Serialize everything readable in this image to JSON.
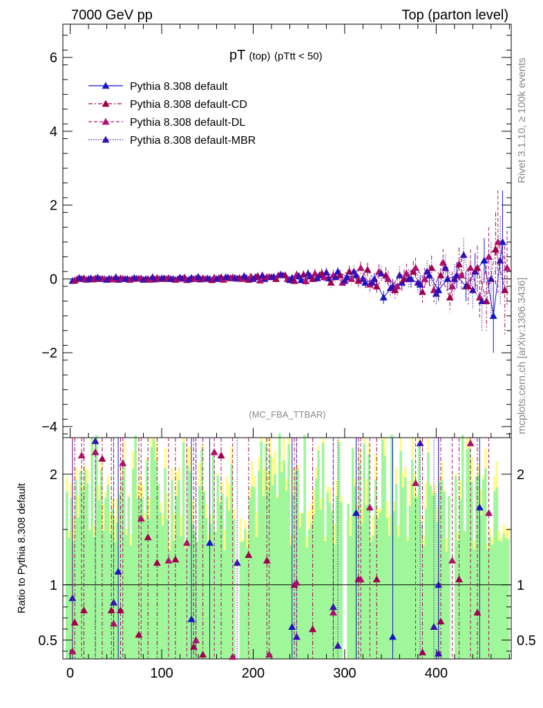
{
  "header": {
    "left": "7000 GeV pp",
    "right": "Top (parton level)"
  },
  "plot_title": {
    "main": "pT",
    "sub": "(top)",
    "cut": "(pTtt < 50)"
  },
  "watermark": "(MC_FBA_TTBAR)",
  "side_text": {
    "rivet": "Rivet 3.1.10, ≥ 100k events",
    "mcplots": "mcplots.cern.ch [arXiv:1306.3436]"
  },
  "colors": {
    "default": "#1515c8",
    "cd": "#a0004b",
    "dl": "#b0106a",
    "mbr": "#3a10b0",
    "band_green": "#a0f79a",
    "band_yellow": "#fefc8c"
  },
  "chart_data": [
    {
      "type": "scatter",
      "panel": "main",
      "xlim": [
        -8,
        482
      ],
      "ylim": [
        -4.3,
        6.9
      ],
      "y_ticks": [
        -4,
        -2,
        0,
        2,
        4,
        6
      ],
      "y_tick_labels": [
        "−4",
        "−2",
        "0",
        "2",
        "4",
        "6"
      ],
      "legend_position": "top-left",
      "series": [
        {
          "name": "Pythia 8.308 default",
          "key": "default",
          "style": "solid",
          "x": [
            2.5,
            12.5,
            22.5,
            32.5,
            42.5,
            52.5,
            62.5,
            72.5,
            82.5,
            92.5,
            102.5,
            112.5,
            122.5,
            132.5,
            142.5,
            152.5,
            162.5,
            172.5,
            182.5,
            192.5,
            202.5,
            212.5,
            222.5,
            232.5,
            242.5,
            252.5,
            262.5,
            272.5,
            282.5,
            292.5,
            302.5,
            312.5,
            322.5,
            332.5,
            342.5,
            352.5,
            362.5,
            372.5,
            382.5,
            392.5,
            402.5,
            412.5,
            422.5,
            432.5,
            442.5,
            452.5,
            462.5,
            472.5
          ],
          "y": [
            -0.05,
            0.0,
            0.02,
            0.0,
            0.01,
            -0.02,
            0.0,
            0.01,
            0.0,
            -0.01,
            0.02,
            0.0,
            0.01,
            0.03,
            -0.01,
            0.0,
            0.02,
            0.04,
            0.01,
            0.03,
            0.05,
            0.0,
            0.06,
            0.1,
            0.03,
            -0.03,
            0.07,
            0.1,
            0.02,
            0.2,
            0.05,
            0.1,
            -0.1,
            0.0,
            -0.5,
            -0.2,
            -0.1,
            0.0,
            -0.15,
            0.1,
            -0.3,
            0.0,
            0.1,
            -0.2,
            0.2,
            0.5,
            -1.0,
            1.0
          ],
          "yerr": [
            0.03,
            0.03,
            0.03,
            0.03,
            0.03,
            0.03,
            0.03,
            0.04,
            0.04,
            0.04,
            0.04,
            0.04,
            0.05,
            0.05,
            0.05,
            0.05,
            0.06,
            0.06,
            0.06,
            0.07,
            0.07,
            0.07,
            0.08,
            0.08,
            0.09,
            0.09,
            0.1,
            0.1,
            0.11,
            0.12,
            0.13,
            0.14,
            0.15,
            0.16,
            0.18,
            0.2,
            0.22,
            0.24,
            0.26,
            0.28,
            0.3,
            0.33,
            0.36,
            0.4,
            0.5,
            0.6,
            1.0,
            1.4
          ]
        },
        {
          "name": "Pythia 8.308 default-CD",
          "key": "cd",
          "style": "dashdot",
          "x": [
            5.0,
            15.0,
            25.0,
            35.0,
            45.0,
            55.0,
            65.0,
            75.0,
            85.0,
            95.0,
            105.0,
            115.0,
            125.0,
            135.0,
            145.0,
            155.0,
            165.0,
            175.0,
            185.0,
            195.0,
            205.0,
            215.0,
            225.0,
            235.0,
            245.0,
            255.0,
            265.0,
            275.0,
            285.0,
            295.0,
            305.0,
            315.0,
            325.0,
            335.0,
            345.0,
            355.0,
            365.0,
            375.0,
            385.0,
            395.0,
            405.0,
            415.0,
            425.0,
            435.0,
            445.0,
            455.0,
            465.0,
            475.0
          ],
          "y": [
            -0.04,
            0.02,
            -0.01,
            0.01,
            0.0,
            0.02,
            -0.02,
            0.01,
            0.0,
            0.03,
            0.0,
            -0.02,
            0.04,
            0.0,
            0.02,
            -0.03,
            0.05,
            0.02,
            0.03,
            -0.02,
            0.08,
            0.05,
            0.0,
            0.1,
            -0.05,
            0.12,
            0.0,
            0.15,
            -0.1,
            0.1,
            0.2,
            -0.05,
            0.25,
            -0.2,
            0.1,
            -0.3,
            0.0,
            0.2,
            -0.35,
            0.3,
            0.1,
            -0.5,
            0.4,
            -0.2,
            0.3,
            -0.6,
            0.8,
            -0.3
          ],
          "yerr": [
            0.03,
            0.03,
            0.03,
            0.03,
            0.03,
            0.03,
            0.04,
            0.04,
            0.04,
            0.04,
            0.05,
            0.05,
            0.05,
            0.05,
            0.06,
            0.06,
            0.06,
            0.07,
            0.07,
            0.08,
            0.08,
            0.09,
            0.09,
            0.1,
            0.1,
            0.11,
            0.12,
            0.13,
            0.14,
            0.15,
            0.16,
            0.17,
            0.19,
            0.2,
            0.22,
            0.24,
            0.26,
            0.28,
            0.3,
            0.33,
            0.36,
            0.4,
            0.45,
            0.5,
            0.6,
            0.8,
            1.0,
            1.2
          ]
        },
        {
          "name": "Pythia 8.308 default-DL",
          "key": "dl",
          "style": "dashed",
          "x": [
            7.5,
            17.5,
            27.5,
            37.5,
            47.5,
            57.5,
            67.5,
            77.5,
            87.5,
            97.5,
            107.5,
            117.5,
            127.5,
            137.5,
            147.5,
            157.5,
            167.5,
            177.5,
            187.5,
            197.5,
            207.5,
            217.5,
            227.5,
            237.5,
            247.5,
            257.5,
            267.5,
            277.5,
            287.5,
            297.5,
            307.5,
            317.5,
            327.5,
            337.5,
            347.5,
            357.5,
            367.5,
            377.5,
            387.5,
            397.5,
            407.5,
            417.5,
            427.5,
            437.5,
            447.5,
            457.5,
            467.5,
            477.5
          ],
          "y": [
            0.0,
            -0.02,
            0.02,
            0.0,
            -0.01,
            0.01,
            0.0,
            0.02,
            -0.02,
            0.0,
            0.03,
            0.0,
            -0.03,
            0.02,
            0.0,
            0.04,
            -0.02,
            0.05,
            0.0,
            0.07,
            -0.04,
            0.06,
            0.1,
            0.0,
            0.12,
            -0.06,
            0.15,
            0.05,
            0.1,
            -0.1,
            0.0,
            0.3,
            -0.15,
            0.2,
            0.0,
            -0.2,
            0.15,
            0.3,
            0.0,
            -0.3,
            0.45,
            -0.2,
            0.1,
            0.3,
            -0.5,
            0.6,
            1.0,
            0.3
          ],
          "yerr": [
            0.03,
            0.03,
            0.03,
            0.03,
            0.03,
            0.03,
            0.04,
            0.04,
            0.04,
            0.04,
            0.05,
            0.05,
            0.05,
            0.05,
            0.06,
            0.06,
            0.06,
            0.07,
            0.07,
            0.08,
            0.08,
            0.09,
            0.09,
            0.1,
            0.1,
            0.11,
            0.12,
            0.13,
            0.14,
            0.15,
            0.16,
            0.17,
            0.19,
            0.2,
            0.22,
            0.24,
            0.26,
            0.28,
            0.3,
            0.33,
            0.36,
            0.4,
            0.45,
            0.5,
            0.6,
            0.8,
            1.4,
            1.0
          ]
        },
        {
          "name": "Pythia 8.308 default-MBR",
          "key": "mbr",
          "style": "dotted",
          "x": [
            10.0,
            20.0,
            30.0,
            40.0,
            50.0,
            60.0,
            70.0,
            80.0,
            90.0,
            100.0,
            110.0,
            120.0,
            130.0,
            140.0,
            150.0,
            160.0,
            170.0,
            180.0,
            190.0,
            200.0,
            210.0,
            220.0,
            230.0,
            240.0,
            250.0,
            260.0,
            270.0,
            280.0,
            290.0,
            300.0,
            310.0,
            320.0,
            330.0,
            340.0,
            350.0,
            360.0,
            370.0,
            380.0,
            390.0,
            400.0,
            410.0,
            420.0,
            430.0,
            440.0,
            450.0,
            460.0,
            470.0
          ],
          "y": [
            0.03,
            0.0,
            0.04,
            -0.02,
            0.05,
            0.0,
            0.03,
            -0.02,
            0.05,
            0.02,
            0.0,
            0.04,
            -0.01,
            0.06,
            0.02,
            0.0,
            0.05,
            0.03,
            0.08,
            0.0,
            0.1,
            0.05,
            0.12,
            -0.03,
            0.08,
            0.15,
            0.02,
            0.18,
            0.05,
            -0.05,
            0.2,
            0.0,
            -0.1,
            0.15,
            -0.25,
            0.1,
            0.0,
            -0.1,
            0.2,
            -0.4,
            0.3,
            0.0,
            0.65,
            -0.3,
            -0.6,
            0.0,
            0.5
          ],
          "yerr": [
            0.03,
            0.03,
            0.03,
            0.03,
            0.03,
            0.03,
            0.04,
            0.04,
            0.04,
            0.04,
            0.05,
            0.05,
            0.05,
            0.05,
            0.06,
            0.06,
            0.06,
            0.07,
            0.07,
            0.08,
            0.08,
            0.09,
            0.09,
            0.1,
            0.1,
            0.11,
            0.12,
            0.13,
            0.14,
            0.15,
            0.16,
            0.17,
            0.19,
            0.2,
            0.22,
            0.24,
            0.26,
            0.28,
            0.3,
            0.33,
            0.36,
            0.4,
            0.45,
            0.5,
            0.8,
            1.0,
            1.2
          ]
        }
      ]
    },
    {
      "type": "scatter",
      "panel": "ratio",
      "ylabel": "Ratio to Pythia 8.308 default",
      "xlim": [
        -8,
        482
      ],
      "ylim": [
        0.33,
        2.33
      ],
      "x_ticks": [
        0,
        100,
        200,
        300,
        400
      ],
      "x_tick_labels": [
        "0",
        "100",
        "200",
        "300",
        "400"
      ],
      "y_ticks": [
        0.5,
        1,
        2
      ],
      "y_tick_labels": [
        "0.5",
        "1",
        "2"
      ],
      "reference_line": 1,
      "series": [
        {
          "key": "default",
          "x": [
            2.5,
            52.5,
            132.5,
            152.5,
            242.5,
            312.5,
            352.5,
            402.5,
            447.5
          ],
          "y": [
            0.88,
            1.12,
            0.69,
            1.38,
            0.62,
            1.65,
            0.53,
            1.0,
            1.7
          ]
        },
        {
          "key": "cd",
          "x": [
            5.0,
            15.0,
            35.0,
            45.0,
            55.0,
            75.0,
            85.0,
            95.0,
            115.0,
            135.0,
            145.0,
            165.0,
            195.0,
            215.0,
            245.0,
            265.0,
            315.0,
            335.0,
            385.0,
            405.0,
            425.0,
            445.0
          ],
          "y": [
            0.66,
            0.77,
            2.14,
            0.77,
            0.77,
            0.55,
            1.43,
            1.2,
            1.23,
            0.44,
            0.37,
            2.17,
            1.27,
            1.22,
            1.0,
            0.6,
            1.05,
            1.05,
            0.39,
            0.67,
            1.05,
            0.75
          ]
        },
        {
          "key": "dl",
          "x": [
            2.5,
            12.5,
            27.5,
            47.5,
            57.5,
            77.5,
            107.5,
            127.5,
            137.5,
            157.5,
            177.5,
            217.5,
            247.5,
            287.5,
            317.5,
            327.5,
            377.5,
            417.5,
            437.5,
            457.5
          ],
          "y": [
            0.4,
            2.17,
            2.2,
            0.65,
            2.1,
            1.6,
            1.22,
            1.38,
            0.5,
            2.2,
            0.35,
            0.37,
            1.02,
            0.75,
            1.05,
            1.7,
            1.92,
            1.22,
            2.28,
            1.65
          ]
        },
        {
          "key": "mbr",
          "x": [
            27.5,
            47.5,
            137.5,
            182.5,
            247.5,
            287.5,
            292.5,
            382.5,
            397.5,
            402.5
          ],
          "y": [
            2.3,
            0.84,
            0.27,
            1.2,
            0.53,
            0.8,
            0.45,
            2.28,
            0.62,
            0.38
          ]
        }
      ]
    }
  ]
}
